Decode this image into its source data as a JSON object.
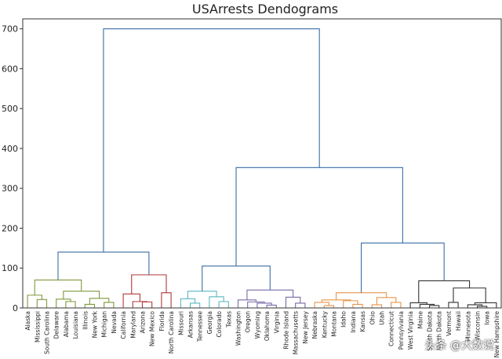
{
  "chart_data": {
    "type": "dendrogram",
    "title": "USArrests Dendograms",
    "xlabel": "",
    "ylabel": "",
    "ylim": [
      0,
      725
    ],
    "yticks": [
      0,
      100,
      200,
      300,
      400,
      500,
      600,
      700
    ],
    "grid": false,
    "leaves": [
      "Alaska",
      "Mississippi",
      "South Carolina",
      "Delaware",
      "Alabama",
      "Louisiana",
      "Illinois",
      "New York",
      "Michigan",
      "Nevada",
      "California",
      "Maryland",
      "Arizona",
      "New Mexico",
      "Florida",
      "North Carolina",
      "Missouri",
      "Arkansas",
      "Tennessee",
      "Georgia",
      "Colorado",
      "Texas",
      "Washington",
      "Oregon",
      "Wyoming",
      "Oklahoma",
      "Virginia",
      "Rhode Island",
      "Massachusetts",
      "New Jersey",
      "Nebraska",
      "Kentucky",
      "Montana",
      "Idaho",
      "Indiana",
      "Kansas",
      "Ohio",
      "Utah",
      "Connecticut",
      "Pennsylvania",
      "West Virginia",
      "Maine",
      "South Dakota",
      "North Dakota",
      "Vermont",
      "Hawaii",
      "Minnesota",
      "Wisconsin",
      "Iowa",
      "New Hampshire"
    ],
    "clusters": [
      {
        "color": "#7f9a3c"
      },
      {
        "color": "#b03a3a"
      },
      {
        "color": "#5ab8c2"
      },
      {
        "color": "#7a6aa8"
      },
      {
        "color": "#e8954a"
      },
      {
        "color": "#333333"
      }
    ],
    "link_color": "#3a6ea5",
    "merges": [
      {
        "a": 1,
        "b": 2,
        "h": 21,
        "c": 0
      },
      {
        "a": 0,
        "b": 50,
        "h": 32,
        "c": 0
      },
      {
        "a": 4,
        "b": 5,
        "h": 16,
        "c": 0
      },
      {
        "a": 3,
        "b": 52,
        "h": 22,
        "c": 0
      },
      {
        "a": 6,
        "b": 7,
        "h": 9,
        "c": 0
      },
      {
        "a": 8,
        "b": 9,
        "h": 14,
        "c": 0
      },
      {
        "a": 54,
        "b": 55,
        "h": 24,
        "c": 0
      },
      {
        "a": 53,
        "b": 56,
        "h": 42,
        "c": 0
      },
      {
        "a": 51,
        "b": 57,
        "h": 70,
        "c": 0
      },
      {
        "a": 12,
        "b": 13,
        "h": 15,
        "c": 1
      },
      {
        "a": 11,
        "b": 59,
        "h": 16,
        "c": 1
      },
      {
        "a": 10,
        "b": 60,
        "h": 35,
        "c": 1
      },
      {
        "a": 14,
        "b": 15,
        "h": 38,
        "c": 1
      },
      {
        "a": 61,
        "b": 62,
        "h": 83,
        "c": 1
      },
      {
        "a": 17,
        "b": 18,
        "h": 12,
        "c": 2
      },
      {
        "a": 16,
        "b": 64,
        "h": 23,
        "c": 2
      },
      {
        "a": 20,
        "b": 21,
        "h": 16,
        "c": 2
      },
      {
        "a": 19,
        "b": 66,
        "h": 28,
        "c": 2
      },
      {
        "a": 65,
        "b": 67,
        "h": 42,
        "c": 2
      },
      {
        "a": 25,
        "b": 26,
        "h": 7,
        "c": 3
      },
      {
        "a": 24,
        "b": 69,
        "h": 12,
        "c": 3
      },
      {
        "a": 23,
        "b": 70,
        "h": 15,
        "c": 3
      },
      {
        "a": 22,
        "b": 71,
        "h": 20,
        "c": 3
      },
      {
        "a": 28,
        "b": 29,
        "h": 12,
        "c": 3
      },
      {
        "a": 27,
        "b": 73,
        "h": 27,
        "c": 3
      },
      {
        "a": 72,
        "b": 74,
        "h": 45,
        "c": 3
      },
      {
        "a": 31,
        "b": 32,
        "h": 6,
        "c": 4
      },
      {
        "a": 30,
        "b": 76,
        "h": 14,
        "c": 4
      },
      {
        "a": 34,
        "b": 35,
        "h": 9,
        "c": 4
      },
      {
        "a": 33,
        "b": 78,
        "h": 18,
        "c": 4
      },
      {
        "a": 77,
        "b": 79,
        "h": 20,
        "c": 4
      },
      {
        "a": 36,
        "b": 37,
        "h": 8,
        "c": 4
      },
      {
        "a": 38,
        "b": 39,
        "h": 14,
        "c": 4
      },
      {
        "a": 81,
        "b": 82,
        "h": 26,
        "c": 4
      },
      {
        "a": 80,
        "b": 83,
        "h": 38,
        "c": 4
      },
      {
        "a": 42,
        "b": 43,
        "h": 6,
        "c": 5
      },
      {
        "a": 41,
        "b": 85,
        "h": 9,
        "c": 5
      },
      {
        "a": 40,
        "b": 86,
        "h": 13,
        "c": 5
      },
      {
        "a": 44,
        "b": 45,
        "h": 14,
        "c": 5
      },
      {
        "a": 47,
        "b": 48,
        "h": 4,
        "c": 5
      },
      {
        "a": 46,
        "b": 89,
        "h": 8,
        "c": 5
      },
      {
        "a": 90,
        "b": 49,
        "h": 13,
        "c": 5
      },
      {
        "a": 88,
        "b": 91,
        "h": 50,
        "c": 5
      },
      {
        "a": 87,
        "b": 92,
        "h": 68,
        "c": 5
      },
      {
        "a": 58,
        "b": 63,
        "h": 140,
        "c": -1
      },
      {
        "a": 68,
        "b": 75,
        "h": 105,
        "c": -1
      },
      {
        "a": 84,
        "b": 93,
        "h": 163,
        "c": -1
      },
      {
        "a": 95,
        "b": 96,
        "h": 352,
        "c": -1
      },
      {
        "a": 94,
        "b": 97,
        "h": 700,
        "c": -1
      }
    ]
  }
}
